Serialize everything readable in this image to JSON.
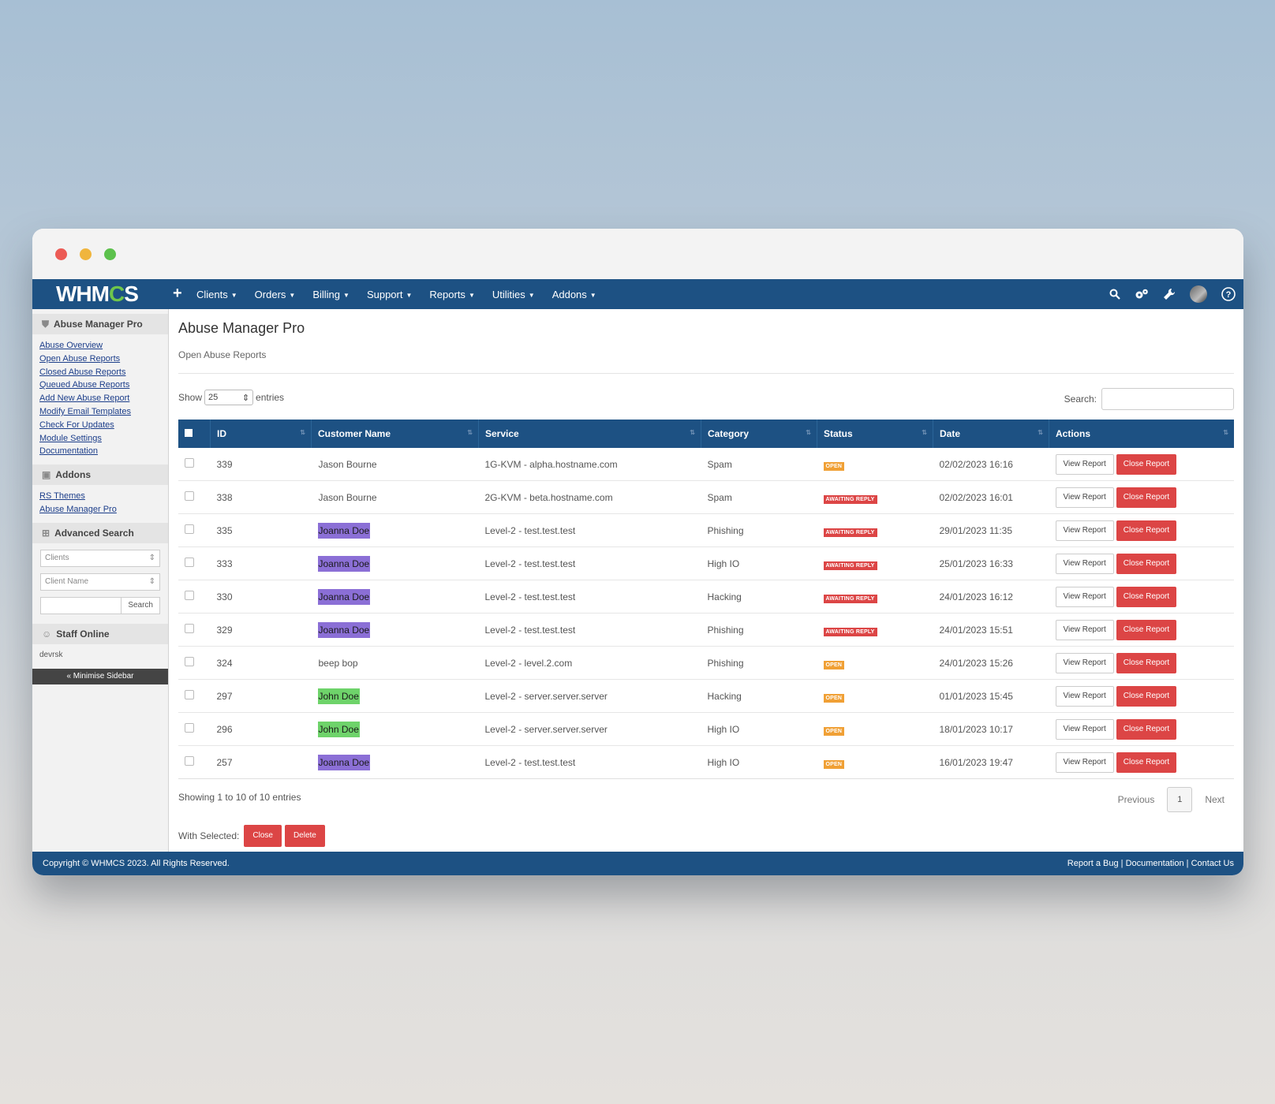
{
  "navbar": {
    "logo": {
      "left": "WHM",
      "mid": "C",
      "right": "S"
    },
    "items": [
      "Clients",
      "Orders",
      "Billing",
      "Support",
      "Reports",
      "Utilities",
      "Addons"
    ]
  },
  "sidebar": {
    "section_main": "Abuse Manager Pro",
    "links": [
      "Abuse Overview",
      "Open Abuse Reports",
      "Closed Abuse Reports",
      "Queued Abuse Reports",
      "Add New Abuse Report",
      "Modify Email Templates",
      "Check For Updates",
      "Module Settings",
      "Documentation"
    ],
    "section_addons": "Addons",
    "addon_links": [
      "RS Themes",
      "Abuse Manager Pro"
    ],
    "section_search": "Advanced Search",
    "search_type": "Clients",
    "search_field": "Client Name",
    "search_button": "Search",
    "section_staff": "Staff Online",
    "staff": "devrsk",
    "minimise": "« Minimise Sidebar"
  },
  "main": {
    "title": "Abuse Manager Pro",
    "subtitle": "Open Abuse Reports",
    "show_label": "Show",
    "entries_value": "25",
    "entries_label": "entries",
    "search_label": "Search:"
  },
  "table": {
    "columns": [
      "ID",
      "Customer Name",
      "Service",
      "Category",
      "Status",
      "Date",
      "Actions"
    ],
    "rows": [
      {
        "id": "339",
        "customer": "Jason Bourne",
        "hl": "",
        "service": "1G-KVM - alpha.hostname.com",
        "category": "Spam",
        "status": "OPEN",
        "date": "02/02/2023 16:16"
      },
      {
        "id": "338",
        "customer": "Jason Bourne",
        "hl": "",
        "service": "2G-KVM - beta.hostname.com",
        "category": "Spam",
        "status": "AWAITING REPLY",
        "date": "02/02/2023 16:01"
      },
      {
        "id": "335",
        "customer": "Joanna Doe",
        "hl": "#8b6fd6",
        "service": "Level-2 - test.test.test",
        "category": "Phishing",
        "status": "AWAITING REPLY",
        "date": "29/01/2023 11:35"
      },
      {
        "id": "333",
        "customer": "Joanna Doe",
        "hl": "#8b6fd6",
        "service": "Level-2 - test.test.test",
        "category": "High IO",
        "status": "AWAITING REPLY",
        "date": "25/01/2023 16:33"
      },
      {
        "id": "330",
        "customer": "Joanna Doe",
        "hl": "#8b6fd6",
        "service": "Level-2 - test.test.test",
        "category": "Hacking",
        "status": "AWAITING REPLY",
        "date": "24/01/2023 16:12"
      },
      {
        "id": "329",
        "customer": "Joanna Doe",
        "hl": "#8b6fd6",
        "service": "Level-2 - test.test.test",
        "category": "Phishing",
        "status": "AWAITING REPLY",
        "date": "24/01/2023 15:51"
      },
      {
        "id": "324",
        "customer": "beep bop",
        "hl": "",
        "service": "Level-2 - level.2.com",
        "category": "Phishing",
        "status": "OPEN",
        "date": "24/01/2023 15:26"
      },
      {
        "id": "297",
        "customer": "John Doe",
        "hl": "#6ed36a",
        "service": "Level-2 - server.server.server",
        "category": "Hacking",
        "status": "OPEN",
        "date": "01/01/2023 15:45"
      },
      {
        "id": "296",
        "customer": "John Doe",
        "hl": "#6ed36a",
        "service": "Level-2 - server.server.server",
        "category": "High IO",
        "status": "OPEN",
        "date": "18/01/2023 10:17"
      },
      {
        "id": "257",
        "customer": "Joanna Doe",
        "hl": "#8b6fd6",
        "service": "Level-2 - test.test.test",
        "category": "High IO",
        "status": "OPEN",
        "date": "16/01/2023 19:47"
      }
    ],
    "view_label": "View Report",
    "close_label": "Close Report"
  },
  "pagination": {
    "info": "Showing 1 to 10 of 10 entries",
    "previous": "Previous",
    "current": "1",
    "next": "Next"
  },
  "bulk": {
    "label": "With Selected:",
    "close": "Close",
    "delete": "Delete"
  },
  "footer": {
    "copyright": "Copyright © WHMCS 2023. All Rights Reserved.",
    "links": [
      "Report a Bug",
      "Documentation",
      "Contact Us"
    ]
  },
  "colors": {
    "nav": "#1d5183",
    "danger": "#dc4545",
    "open": "#f0a035",
    "purple_highlight": "#8b6fd6",
    "green_highlight": "#6ed36a"
  }
}
